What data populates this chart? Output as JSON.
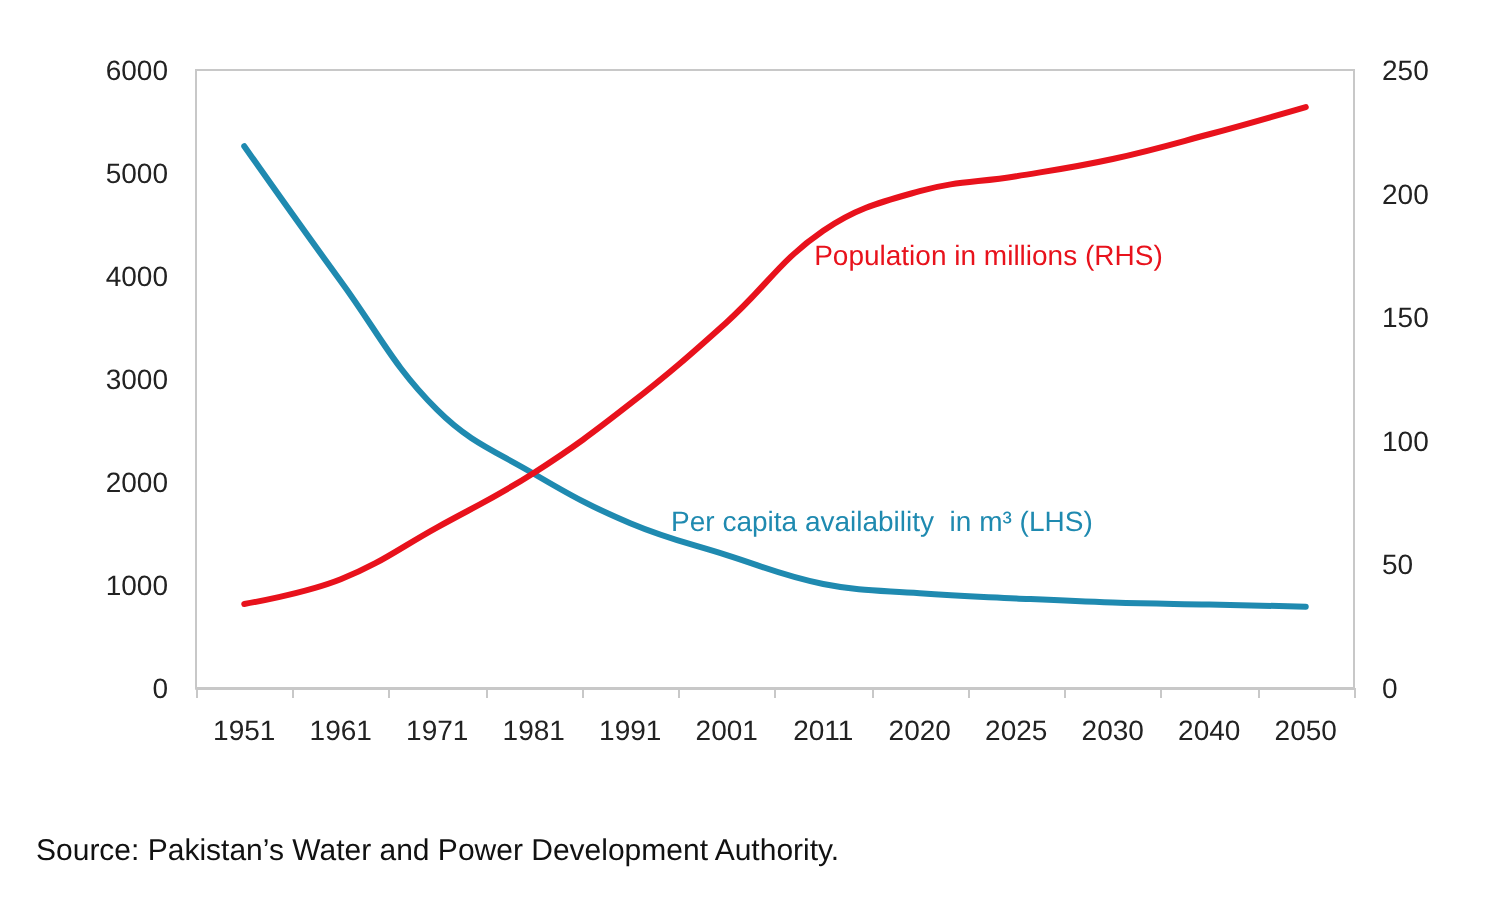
{
  "chart_data": {
    "type": "line",
    "categories": [
      "1951",
      "1961",
      "1971",
      "1981",
      "1991",
      "2001",
      "2011",
      "2020",
      "2025",
      "2030",
      "2040",
      "2050"
    ],
    "series": [
      {
        "name": "Per capita availability  in m³ (LHS)",
        "color": "#1f8ab0",
        "values": [
          5260,
          3950,
          2700,
          2080,
          1600,
          1290,
          1010,
          920,
          870,
          830,
          810,
          790
        ]
      },
      {
        "name": "Population in millions (RHS)",
        "color": "#e8121c",
        "axis": "y2",
        "values": [
          34,
          44,
          65,
          87,
          115,
          148,
          185,
          201,
          207,
          214,
          224,
          235
        ]
      }
    ],
    "ylim": [
      0,
      6000
    ],
    "yticks": [
      0,
      1000,
      2000,
      3000,
      4000,
      5000,
      6000
    ],
    "y2lim": [
      0,
      250
    ],
    "y2ticks": [
      0,
      50,
      100,
      150,
      200,
      250
    ],
    "grid": false,
    "legend": false,
    "marker": "none",
    "line_style": "solid",
    "annotations": [
      "Source: Pakistan’s Water and Power Development Authority."
    ]
  }
}
